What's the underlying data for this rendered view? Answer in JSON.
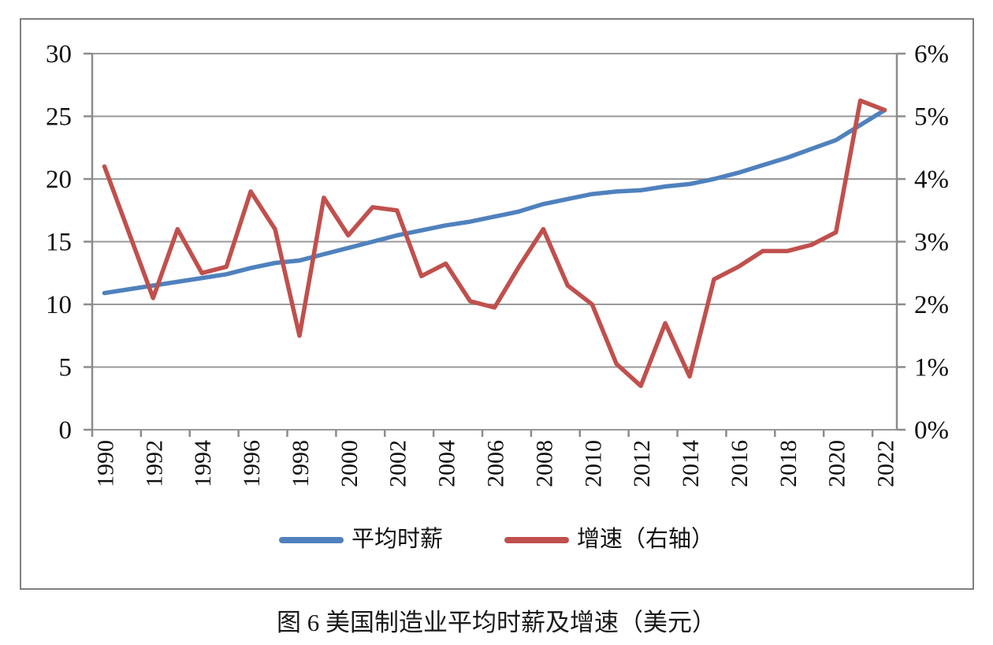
{
  "figure": {
    "caption": "图 6  美国制造业平均时薪及增速（美元）"
  },
  "legend": {
    "items": [
      {
        "label": "平均时薪",
        "color": "#4f81bd",
        "series": "wage"
      },
      {
        "label": "增速（右轴）",
        "color": "#c0504d",
        "series": "growth"
      }
    ]
  },
  "colors": {
    "wage_line": "#4f81bd",
    "growth_line": "#c0504d",
    "gridline": "#999999",
    "axis": "#8c8c8c",
    "frame_border": "#7f7f7f",
    "text": "#111111"
  },
  "chart_data": {
    "type": "line",
    "title": "图 6  美国制造业平均时薪及增速（美元）",
    "grid": true,
    "legend_position": "bottom",
    "x": [
      1990,
      1991,
      1992,
      1993,
      1994,
      1995,
      1996,
      1997,
      1998,
      1999,
      2000,
      2001,
      2002,
      2003,
      2004,
      2005,
      2006,
      2007,
      2008,
      2009,
      2010,
      2011,
      2012,
      2013,
      2014,
      2015,
      2016,
      2017,
      2018,
      2019,
      2020,
      2021,
      2022
    ],
    "x_tick_labels": [
      "1990",
      "1992",
      "1994",
      "1996",
      "1998",
      "2000",
      "2002",
      "2004",
      "2006",
      "2008",
      "2010",
      "2012",
      "2014",
      "2016",
      "2018",
      "2020",
      "2022"
    ],
    "left_axis": {
      "label": "",
      "min": 0,
      "max": 30,
      "tick_values": [
        0,
        5,
        10,
        15,
        20,
        25,
        30
      ],
      "tick_labels": [
        "0",
        "5",
        "10",
        "15",
        "20",
        "25",
        "30"
      ]
    },
    "right_axis": {
      "label": "",
      "min": 0,
      "max": 6,
      "tick_values": [
        0,
        1,
        2,
        3,
        4,
        5,
        6
      ],
      "tick_labels": [
        "0%",
        "1%",
        "2%",
        "3%",
        "4%",
        "5%",
        "6%"
      ]
    },
    "series": [
      {
        "name": "平均时薪",
        "axis": "left",
        "color": "#4f81bd",
        "unit": "USD/hour",
        "values": [
          10.9,
          11.2,
          11.5,
          11.8,
          12.1,
          12.4,
          12.9,
          13.3,
          13.5,
          14.0,
          14.5,
          15.0,
          15.5,
          15.9,
          16.3,
          16.6,
          17.0,
          17.4,
          18.0,
          18.4,
          18.8,
          19.0,
          19.1,
          19.4,
          19.6,
          20.0,
          20.5,
          21.1,
          21.7,
          22.4,
          23.1,
          24.3,
          25.5
        ]
      },
      {
        "name": "增速（右轴）",
        "axis": "right",
        "color": "#c0504d",
        "unit": "%",
        "values": [
          4.2,
          3.15,
          2.1,
          3.2,
          2.5,
          2.6,
          3.8,
          3.2,
          1.5,
          3.7,
          3.1,
          3.55,
          3.5,
          2.45,
          2.65,
          2.05,
          1.95,
          2.6,
          3.2,
          2.3,
          2.0,
          1.05,
          0.7,
          1.7,
          0.85,
          2.4,
          2.6,
          2.85,
          2.85,
          2.95,
          3.15,
          5.25,
          5.1
        ]
      }
    ]
  }
}
